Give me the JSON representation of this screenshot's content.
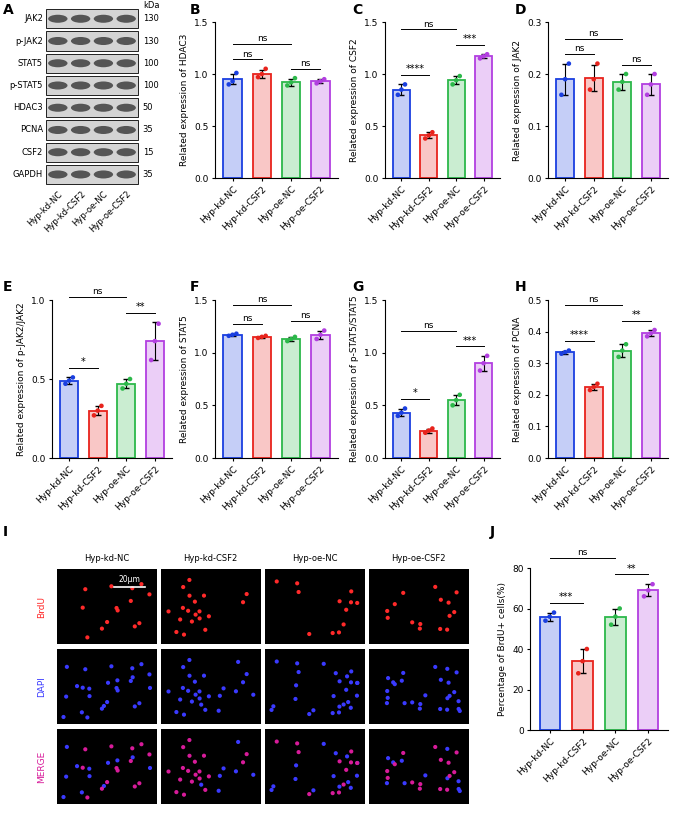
{
  "chart_data": [
    {
      "panel": "B",
      "type": "bar",
      "y_label": "Related expression of HDAC3",
      "categories": [
        "Hyp-kd-NC",
        "Hyp-kd-CSF2",
        "Hyp-oe-NC",
        "Hyp-oe-CSF2"
      ],
      "colors": [
        "#1a3fe0",
        "#e8231c",
        "#2cb84a",
        "#b23fe0"
      ],
      "values": [
        0.95,
        1.0,
        0.92,
        0.93
      ],
      "errors": [
        0.05,
        0.04,
        0.035,
        0.02
      ],
      "points": [
        [
          0.9,
          0.93,
          1.01
        ],
        [
          0.97,
          1.0,
          1.05
        ],
        [
          0.89,
          0.92,
          0.96
        ],
        [
          0.91,
          0.93,
          0.95
        ]
      ],
      "ylim": [
        0,
        1.5
      ],
      "yticks": [
        {
          "value": 0,
          "label": "0.0"
        },
        {
          "value": 0.5,
          "label": "0.5"
        },
        {
          "value": 1.0,
          "label": "1.0"
        },
        {
          "value": 1.5,
          "label": "1.5"
        }
      ],
      "comparisons": [
        {
          "groups": [
            "Hyp-kd-NC",
            "Hyp-kd-CSF2"
          ],
          "label": "ns"
        },
        {
          "groups": [
            "Hyp-oe-NC",
            "Hyp-oe-CSF2"
          ],
          "label": "ns"
        },
        {
          "groups": [
            "Hyp-kd-NC",
            "Hyp-oe-NC"
          ],
          "label": "ns"
        }
      ]
    },
    {
      "panel": "C",
      "type": "bar",
      "y_label": "Related expression of CSF2",
      "categories": [
        "Hyp-kd-NC",
        "Hyp-kd-CSF2",
        "Hyp-oe-NC",
        "Hyp-oe-CSF2"
      ],
      "colors": [
        "#1a3fe0",
        "#e8231c",
        "#2cb84a",
        "#b23fe0"
      ],
      "values": [
        0.85,
        0.41,
        0.94,
        1.17
      ],
      "errors": [
        0.05,
        0.03,
        0.04,
        0.02
      ],
      "points": [
        [
          0.8,
          0.85,
          0.9
        ],
        [
          0.38,
          0.41,
          0.44
        ],
        [
          0.9,
          0.94,
          0.98
        ],
        [
          1.15,
          1.17,
          1.19
        ]
      ],
      "ylim": [
        0,
        1.5
      ],
      "yticks": [
        {
          "value": 0,
          "label": "0.0"
        },
        {
          "value": 0.5,
          "label": "0.5"
        },
        {
          "value": 1.0,
          "label": "1.0"
        },
        {
          "value": 1.5,
          "label": "1.5"
        }
      ],
      "comparisons": [
        {
          "groups": [
            "Hyp-kd-NC",
            "Hyp-kd-CSF2"
          ],
          "label": "****"
        },
        {
          "groups": [
            "Hyp-oe-NC",
            "Hyp-oe-CSF2"
          ],
          "label": "***"
        },
        {
          "groups": [
            "Hyp-kd-NC",
            "Hyp-oe-NC"
          ],
          "label": "ns"
        }
      ]
    },
    {
      "panel": "D",
      "type": "bar",
      "y_label": "Related expression of JAK2",
      "categories": [
        "Hyp-kd-NC",
        "Hyp-kd-CSF2",
        "Hyp-oe-NC",
        "Hyp-oe-CSF2"
      ],
      "colors": [
        "#1a3fe0",
        "#e8231c",
        "#2cb84a",
        "#b23fe0"
      ],
      "values": [
        0.19,
        0.193,
        0.185,
        0.18
      ],
      "errors": [
        0.03,
        0.025,
        0.015,
        0.02
      ],
      "points": [
        [
          0.16,
          0.19,
          0.22
        ],
        [
          0.17,
          0.19,
          0.22
        ],
        [
          0.17,
          0.185,
          0.2
        ],
        [
          0.16,
          0.18,
          0.2
        ]
      ],
      "ylim": [
        0,
        0.3
      ],
      "yticks": [
        {
          "value": 0,
          "label": "0.0"
        },
        {
          "value": 0.1,
          "label": "0.1"
        },
        {
          "value": 0.2,
          "label": "0.2"
        },
        {
          "value": 0.3,
          "label": "0.3"
        }
      ],
      "comparisons": [
        {
          "groups": [
            "Hyp-kd-NC",
            "Hyp-kd-CSF2"
          ],
          "label": "ns"
        },
        {
          "groups": [
            "Hyp-oe-NC",
            "Hyp-oe-CSF2"
          ],
          "label": "ns"
        },
        {
          "groups": [
            "Hyp-kd-NC",
            "Hyp-oe-NC"
          ],
          "label": "ns"
        }
      ]
    },
    {
      "panel": "E",
      "type": "bar",
      "y_label": "Related expression of p-JAK2/JAK2",
      "categories": [
        "Hyp-kd-NC",
        "Hyp-kd-CSF2",
        "Hyp-oe-NC",
        "Hyp-oe-CSF2"
      ],
      "colors": [
        "#1a3fe0",
        "#e8231c",
        "#2cb84a",
        "#b23fe0"
      ],
      "values": [
        0.49,
        0.3,
        0.47,
        0.74
      ],
      "errors": [
        0.02,
        0.03,
        0.03,
        0.12
      ],
      "points": [
        [
          0.47,
          0.49,
          0.51
        ],
        [
          0.27,
          0.3,
          0.33
        ],
        [
          0.44,
          0.47,
          0.5
        ],
        [
          0.62,
          0.74,
          0.85
        ]
      ],
      "ylim": [
        0,
        1.0
      ],
      "yticks": [
        {
          "value": 0,
          "label": "0.0"
        },
        {
          "value": 0.5,
          "label": "0.5"
        },
        {
          "value": 1.0,
          "label": "1.0"
        }
      ],
      "comparisons": [
        {
          "groups": [
            "Hyp-kd-NC",
            "Hyp-kd-CSF2"
          ],
          "label": "*"
        },
        {
          "groups": [
            "Hyp-oe-NC",
            "Hyp-oe-CSF2"
          ],
          "label": "**"
        },
        {
          "groups": [
            "Hyp-kd-NC",
            "Hyp-oe-NC"
          ],
          "label": "ns"
        }
      ]
    },
    {
      "panel": "F",
      "type": "bar",
      "y_label": "Related expression of STAT5",
      "categories": [
        "Hyp-kd-NC",
        "Hyp-kd-CSF2",
        "Hyp-oe-NC",
        "Hyp-oe-CSF2"
      ],
      "colors": [
        "#1a3fe0",
        "#e8231c",
        "#2cb84a",
        "#b23fe0"
      ],
      "values": [
        1.17,
        1.15,
        1.13,
        1.17
      ],
      "errors": [
        0.01,
        0.01,
        0.02,
        0.04
      ],
      "points": [
        [
          1.16,
          1.17,
          1.18
        ],
        [
          1.14,
          1.15,
          1.16
        ],
        [
          1.11,
          1.13,
          1.15
        ],
        [
          1.13,
          1.17,
          1.21
        ]
      ],
      "ylim": [
        0,
        1.5
      ],
      "yticks": [
        {
          "value": 0,
          "label": "0.0"
        },
        {
          "value": 0.5,
          "label": "0.5"
        },
        {
          "value": 1.0,
          "label": "1.0"
        },
        {
          "value": 1.5,
          "label": "1.5"
        }
      ],
      "comparisons": [
        {
          "groups": [
            "Hyp-kd-NC",
            "Hyp-kd-CSF2"
          ],
          "label": "ns"
        },
        {
          "groups": [
            "Hyp-oe-NC",
            "Hyp-oe-CSF2"
          ],
          "label": "ns"
        },
        {
          "groups": [
            "Hyp-kd-NC",
            "Hyp-oe-NC"
          ],
          "label": "ns"
        }
      ]
    },
    {
      "panel": "G",
      "type": "bar",
      "y_label": "Related expression of p-STAT5/STAT5",
      "categories": [
        "Hyp-kd-NC",
        "Hyp-kd-CSF2",
        "Hyp-oe-NC",
        "Hyp-oe-CSF2"
      ],
      "colors": [
        "#1a3fe0",
        "#e8231c",
        "#2cb84a",
        "#b23fe0"
      ],
      "values": [
        0.43,
        0.26,
        0.55,
        0.9
      ],
      "errors": [
        0.035,
        0.02,
        0.05,
        0.07
      ],
      "points": [
        [
          0.4,
          0.43,
          0.47
        ],
        [
          0.24,
          0.26,
          0.28
        ],
        [
          0.5,
          0.55,
          0.6
        ],
        [
          0.83,
          0.9,
          0.97
        ]
      ],
      "ylim": [
        0,
        1.5
      ],
      "yticks": [
        {
          "value": 0,
          "label": "0.0"
        },
        {
          "value": 0.5,
          "label": "0.5"
        },
        {
          "value": 1.0,
          "label": "1.0"
        },
        {
          "value": 1.5,
          "label": "1.5"
        }
      ],
      "comparisons": [
        {
          "groups": [
            "Hyp-kd-NC",
            "Hyp-kd-CSF2"
          ],
          "label": "*"
        },
        {
          "groups": [
            "Hyp-oe-NC",
            "Hyp-oe-CSF2"
          ],
          "label": "***"
        },
        {
          "groups": [
            "Hyp-kd-NC",
            "Hyp-oe-NC"
          ],
          "label": "ns"
        }
      ]
    },
    {
      "panel": "H",
      "type": "bar",
      "y_label": "Related expression of PCNA",
      "categories": [
        "Hyp-kd-NC",
        "Hyp-kd-CSF2",
        "Hyp-oe-NC",
        "Hyp-oe-CSF2"
      ],
      "colors": [
        "#1a3fe0",
        "#e8231c",
        "#2cb84a",
        "#b23fe0"
      ],
      "values": [
        0.335,
        0.225,
        0.34,
        0.395
      ],
      "errors": [
        0.005,
        0.01,
        0.02,
        0.01
      ],
      "points": [
        [
          0.33,
          0.335,
          0.34
        ],
        [
          0.215,
          0.225,
          0.235
        ],
        [
          0.32,
          0.34,
          0.36
        ],
        [
          0.385,
          0.395,
          0.405
        ]
      ],
      "ylim": [
        0,
        0.5
      ],
      "yticks": [
        {
          "value": 0,
          "label": "0.0"
        },
        {
          "value": 0.1,
          "label": "0.1"
        },
        {
          "value": 0.2,
          "label": "0.2"
        },
        {
          "value": 0.3,
          "label": "0.3"
        },
        {
          "value": 0.4,
          "label": "0.4"
        },
        {
          "value": 0.5,
          "label": "0.5"
        }
      ],
      "comparisons": [
        {
          "groups": [
            "Hyp-kd-NC",
            "Hyp-kd-CSF2"
          ],
          "label": "****"
        },
        {
          "groups": [
            "Hyp-oe-NC",
            "Hyp-oe-CSF2"
          ],
          "label": "**"
        },
        {
          "groups": [
            "Hyp-kd-NC",
            "Hyp-oe-NC"
          ],
          "label": "ns"
        }
      ]
    },
    {
      "panel": "J",
      "type": "bar",
      "y_label": "Percentage of BrdU+ cells(%)",
      "categories": [
        "Hyp-kd-NC",
        "Hyp-kd-CSF2",
        "Hyp-oe-NC",
        "Hyp-oe-CSF2"
      ],
      "colors": [
        "#1a3fe0",
        "#e8231c",
        "#2cb84a",
        "#b23fe0"
      ],
      "values": [
        56,
        34,
        56,
        69
      ],
      "errors": [
        2,
        6,
        4,
        3
      ],
      "points": [
        [
          54,
          56,
          58
        ],
        [
          28,
          34,
          40
        ],
        [
          52,
          56,
          60
        ],
        [
          66,
          69,
          72
        ]
      ],
      "ylim": [
        0,
        80
      ],
      "yticks": [
        0,
        20,
        40,
        60,
        80
      ],
      "comparisons": [
        {
          "groups": [
            "Hyp-kd-NC",
            "Hyp-kd-CSF2"
          ],
          "label": "***"
        },
        {
          "groups": [
            "Hyp-oe-NC",
            "Hyp-oe-CSF2"
          ],
          "label": "**"
        },
        {
          "groups": [
            "Hyp-kd-NC",
            "Hyp-oe-NC"
          ],
          "label": "ns"
        }
      ]
    }
  ],
  "western_blot": {
    "panel": "A",
    "unit": "kDa",
    "lanes": [
      "Hyp-kd-NC",
      "Hyp-kd-CSF2",
      "Hyp-oe-NC",
      "Hyp-oe-CSF2"
    ],
    "proteins": [
      {
        "name": "JAK2",
        "kda": 130
      },
      {
        "name": "p-JAK2",
        "kda": 130
      },
      {
        "name": "STAT5",
        "kda": 100
      },
      {
        "name": "p-STAT5",
        "kda": 100
      },
      {
        "name": "HDAC3",
        "kda": 50
      },
      {
        "name": "PCNA",
        "kda": 35
      },
      {
        "name": "CSF2",
        "kda": 15
      },
      {
        "name": "GAPDH",
        "kda": 35
      }
    ]
  },
  "immunofluorescence": {
    "panel": "I",
    "groups": [
      "Hyp-kd-NC",
      "Hyp-kd-CSF2",
      "Hyp-oe-NC",
      "Hyp-oe-CSF2"
    ],
    "channels": [
      {
        "name": "BrdU",
        "color": "#ff2a2a"
      },
      {
        "name": "DAPI",
        "color": "#3a3aff"
      },
      {
        "name": "MERGE",
        "color": "#d81b9a"
      }
    ],
    "scale_bar": "20μm"
  }
}
